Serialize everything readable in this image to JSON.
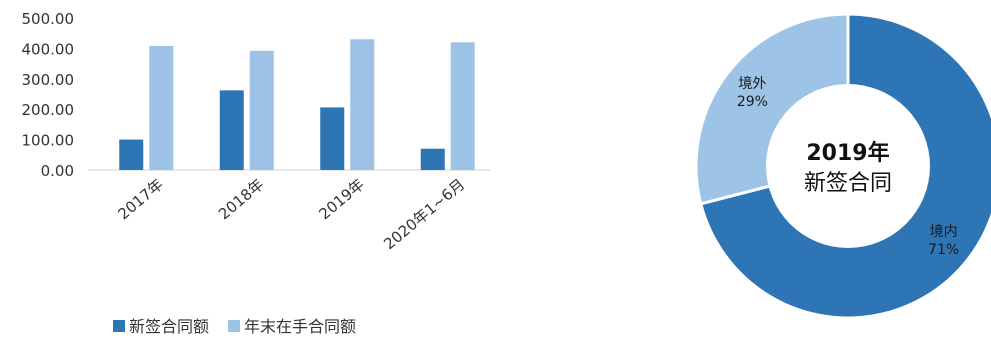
{
  "chart_data": [
    {
      "type": "bar",
      "categories": [
        "2017年",
        "2018年",
        "2019年",
        "2020年1~6月"
      ],
      "series": [
        {
          "name": "新签合同额",
          "values": [
            100,
            262,
            206,
            70
          ],
          "color": "#2E75B6"
        },
        {
          "name": "年末在手合同额",
          "values": [
            408,
            392,
            430,
            420
          ],
          "color": "#9DC3E6"
        }
      ],
      "ylim": [
        0,
        500
      ],
      "yticks": [
        "0.00",
        "100.00",
        "200.00",
        "300.00",
        "400.00",
        "500.00"
      ],
      "legend_position": "bottom",
      "grid": false
    },
    {
      "type": "pie",
      "donut": true,
      "center_label_line1": "2019年",
      "center_label_line2": "新签合同",
      "slices": [
        {
          "label": "境内",
          "value": 71,
          "value_label": "71%",
          "color": "#2E75B6"
        },
        {
          "label": "境外",
          "value": 29,
          "value_label": "29%",
          "color": "#9DC3E6"
        }
      ]
    }
  ]
}
